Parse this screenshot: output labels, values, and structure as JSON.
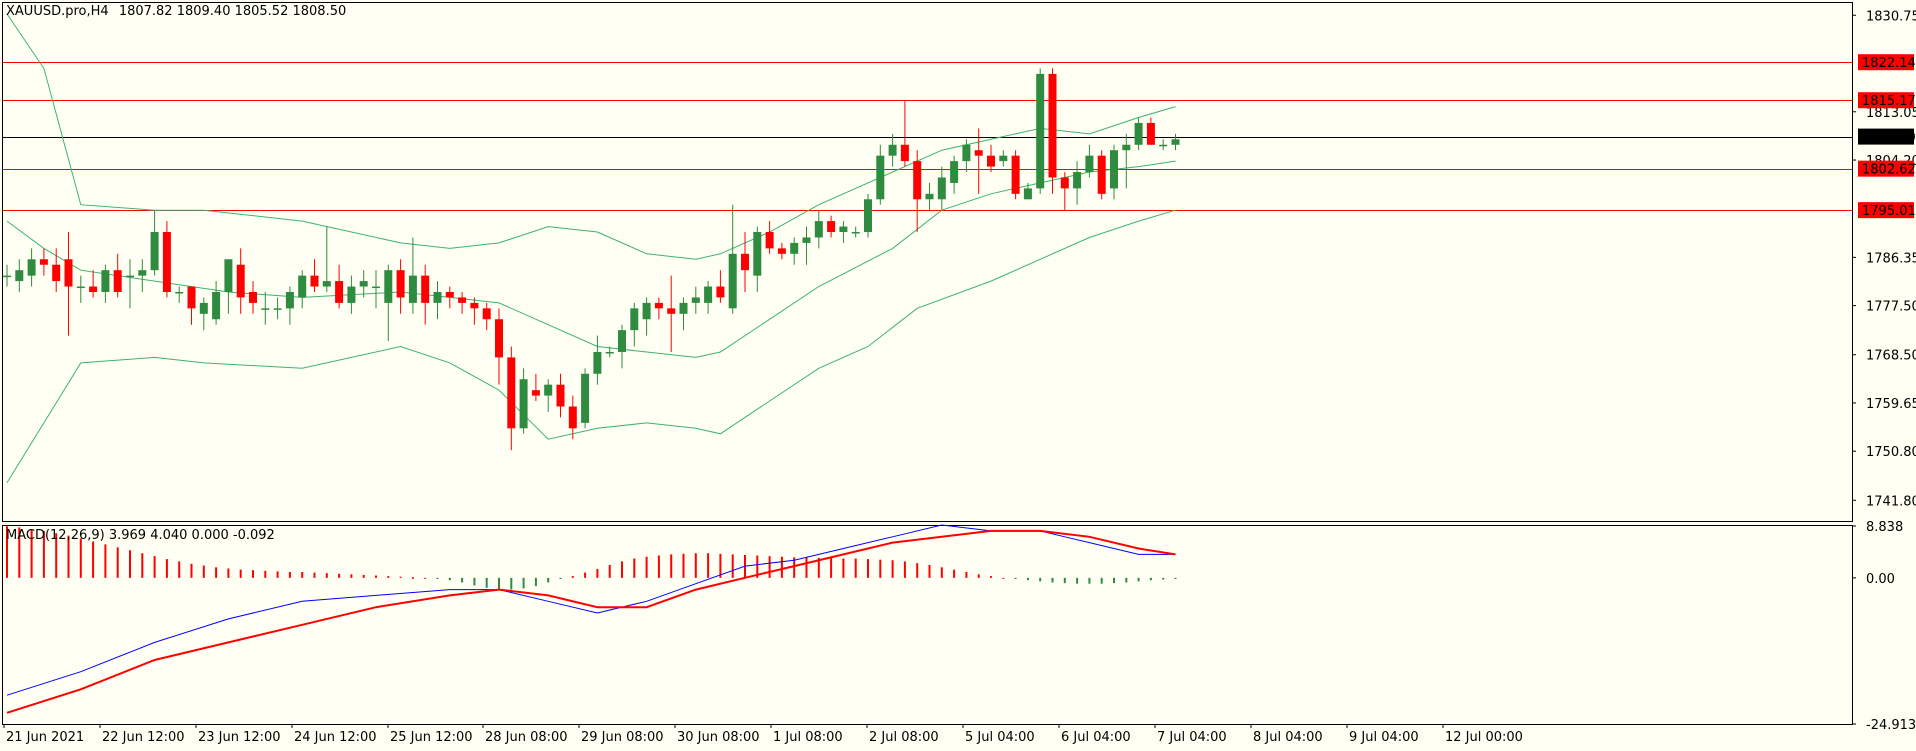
{
  "header": {
    "symbol": "XAUUSD.pro,H4",
    "ohlc": "1807.82 1809.40 1805.52 1808.50"
  },
  "macd_label": "MACD(12,26,9) 3.969 4.040 0.000 -0.092",
  "colors": {
    "background": "#fffff3",
    "bull_candle": "#2e8b40",
    "bear_candle": "#ff0000",
    "bands": "#3cb371",
    "level_line": "#ff0000",
    "current_price_line": "#000000",
    "macd_main": "#0000ff",
    "macd_signal": "#ff0000"
  },
  "chart_data": [
    {
      "type": "candlestick",
      "title": "XAUUSD.pro,H4",
      "ylim": [
        1738,
        1833
      ],
      "y_ticks": [
        "1830.75",
        "1813.05",
        "1804.20",
        "1786.35",
        "1777.50",
        "1768.50",
        "1759.65",
        "1750.80",
        "1741.80"
      ],
      "x_tick_labels": [
        "21 Jun 2021",
        "22 Jun 12:00",
        "23 Jun 12:00",
        "24 Jun 12:00",
        "25 Jun 12:00",
        "28 Jun 08:00",
        "29 Jun 08:00",
        "30 Jun 08:00",
        "1 Jul 08:00",
        "2 Jul 08:00",
        "5 Jul 04:00",
        "6 Jul 04:00",
        "7 Jul 04:00",
        "8 Jul 04:00",
        "9 Jul 04:00",
        "12 Jul 00:00"
      ],
      "horizontal_levels": [
        {
          "value": 1822.14,
          "label": "1822.14"
        },
        {
          "value": 1815.17,
          "label": "1815.17"
        },
        {
          "value": 1802.62,
          "label": "1802.62"
        },
        {
          "value": 1795.01,
          "label": "1795.01"
        }
      ],
      "current_price": {
        "value": 1808.5,
        "label": "1808.50"
      },
      "candles": [
        [
          1783,
          1785,
          1781,
          1783
        ],
        [
          1782,
          1786,
          1780,
          1784
        ],
        [
          1783,
          1788,
          1781,
          1786
        ],
        [
          1786,
          1788,
          1783,
          1785
        ],
        [
          1785,
          1788,
          1780,
          1782
        ],
        [
          1786,
          1791,
          1772,
          1781
        ],
        [
          1781,
          1783,
          1778,
          1781
        ],
        [
          1781,
          1784,
          1779,
          1780
        ],
        [
          1780,
          1785,
          1778,
          1784
        ],
        [
          1784,
          1787,
          1779,
          1780
        ],
        [
          1783,
          1786,
          1777,
          1783
        ],
        [
          1783,
          1786,
          1780,
          1784
        ],
        [
          1784,
          1795,
          1783,
          1791
        ],
        [
          1791,
          1793,
          1779,
          1780
        ],
        [
          1780,
          1781,
          1778,
          1780
        ],
        [
          1781,
          1781,
          1774,
          1777
        ],
        [
          1776,
          1779,
          1773,
          1778
        ],
        [
          1775,
          1782,
          1774,
          1780
        ],
        [
          1780,
          1786,
          1776,
          1786
        ],
        [
          1785,
          1788,
          1776,
          1779
        ],
        [
          1780,
          1782,
          1776,
          1778
        ],
        [
          1777,
          1780,
          1774,
          1777
        ],
        [
          1777,
          1779,
          1775,
          1777
        ],
        [
          1777,
          1781,
          1774,
          1780
        ],
        [
          1779,
          1784,
          1777,
          1783
        ],
        [
          1783,
          1786,
          1780,
          1781
        ],
        [
          1781,
          1792,
          1780,
          1782
        ],
        [
          1782,
          1785,
          1777,
          1778
        ],
        [
          1778,
          1783,
          1776,
          1781
        ],
        [
          1781,
          1784,
          1779,
          1782
        ],
        [
          1781,
          1784,
          1777,
          1781
        ],
        [
          1778,
          1785,
          1771,
          1784
        ],
        [
          1784,
          1786,
          1776,
          1779
        ],
        [
          1778,
          1790,
          1776,
          1783
        ],
        [
          1783,
          1785,
          1774,
          1778
        ],
        [
          1778,
          1782,
          1775,
          1780
        ],
        [
          1780,
          1781,
          1777,
          1779
        ],
        [
          1779,
          1780,
          1776,
          1778
        ],
        [
          1778,
          1779,
          1774,
          1777
        ],
        [
          1777,
          1778,
          1773,
          1775
        ],
        [
          1775,
          1777,
          1763,
          1768
        ],
        [
          1768,
          1770,
          1751,
          1755
        ],
        [
          1755,
          1766,
          1754,
          1764
        ],
        [
          1762,
          1765,
          1760,
          1761
        ],
        [
          1761,
          1764,
          1758,
          1763
        ],
        [
          1763,
          1765,
          1757,
          1759
        ],
        [
          1759,
          1761,
          1753,
          1755
        ],
        [
          1756,
          1766,
          1755,
          1765
        ],
        [
          1765,
          1772,
          1763,
          1769
        ],
        [
          1769,
          1770,
          1768,
          1769
        ],
        [
          1769,
          1774,
          1766,
          1773
        ],
        [
          1773,
          1778,
          1770,
          1777
        ],
        [
          1775,
          1779,
          1772,
          1778
        ],
        [
          1778,
          1779,
          1775,
          1777
        ],
        [
          1777,
          1783,
          1769,
          1776
        ],
        [
          1776,
          1779,
          1773,
          1778
        ],
        [
          1778,
          1781,
          1776,
          1779
        ],
        [
          1778,
          1782,
          1776,
          1781
        ],
        [
          1781,
          1784,
          1778,
          1779
        ],
        [
          1777,
          1796,
          1776,
          1787
        ],
        [
          1787,
          1791,
          1780,
          1784
        ],
        [
          1783,
          1792,
          1780,
          1791
        ],
        [
          1791,
          1793,
          1787,
          1788
        ],
        [
          1788,
          1789,
          1786,
          1787
        ],
        [
          1787,
          1790,
          1785,
          1789
        ],
        [
          1789,
          1792,
          1785,
          1790
        ],
        [
          1790,
          1795,
          1788,
          1793
        ],
        [
          1793,
          1794,
          1790,
          1791
        ],
        [
          1791,
          1793,
          1789,
          1792
        ],
        [
          1791,
          1792,
          1790,
          1791
        ],
        [
          1791,
          1798,
          1790,
          1797
        ],
        [
          1797,
          1807,
          1796,
          1805
        ],
        [
          1805,
          1809,
          1803,
          1807
        ],
        [
          1807,
          1815,
          1803,
          1804
        ],
        [
          1804,
          1806,
          1791,
          1797
        ],
        [
          1797,
          1800,
          1795,
          1798
        ],
        [
          1797,
          1803,
          1795,
          1801
        ],
        [
          1800,
          1805,
          1798,
          1804
        ],
        [
          1804,
          1808,
          1802,
          1807
        ],
        [
          1806,
          1810,
          1798,
          1805
        ],
        [
          1805,
          1807,
          1802,
          1803
        ],
        [
          1804,
          1806,
          1803,
          1805
        ],
        [
          1805,
          1806,
          1797,
          1798
        ],
        [
          1797,
          1800,
          1797,
          1799
        ],
        [
          1799,
          1821,
          1798,
          1820
        ],
        [
          1820,
          1821,
          1798,
          1801
        ],
        [
          1801,
          1802,
          1795,
          1799
        ],
        [
          1799,
          1804,
          1796,
          1802
        ],
        [
          1802,
          1807,
          1801,
          1805
        ],
        [
          1805,
          1806,
          1797,
          1798
        ],
        [
          1799,
          1807,
          1797,
          1806
        ],
        [
          1806,
          1809,
          1799,
          1807
        ],
        [
          1807,
          1812,
          1806,
          1811
        ],
        [
          1811,
          1812,
          1807,
          1807
        ],
        [
          1807,
          1808,
          1806,
          1807
        ],
        [
          1807,
          1809,
          1806,
          1808
        ]
      ],
      "bollinger": {
        "upper": [
          [
            0,
            1831
          ],
          [
            3,
            1821
          ],
          [
            6,
            1796
          ],
          [
            12,
            1795
          ],
          [
            16,
            1795
          ],
          [
            24,
            1793
          ],
          [
            32,
            1789
          ],
          [
            36,
            1788
          ],
          [
            40,
            1789
          ],
          [
            44,
            1792
          ],
          [
            48,
            1791
          ],
          [
            52,
            1787
          ],
          [
            56,
            1786
          ],
          [
            58,
            1787
          ],
          [
            62,
            1791
          ],
          [
            66,
            1796
          ],
          [
            72,
            1802
          ],
          [
            76,
            1806
          ],
          [
            80,
            1808
          ],
          [
            84,
            1810
          ],
          [
            88,
            1809
          ],
          [
            92,
            1812
          ],
          [
            95,
            1814
          ]
        ],
        "middle": [
          [
            0,
            1793
          ],
          [
            3,
            1788
          ],
          [
            6,
            1784
          ],
          [
            12,
            1782
          ],
          [
            18,
            1780
          ],
          [
            24,
            1779
          ],
          [
            32,
            1780
          ],
          [
            36,
            1779
          ],
          [
            40,
            1778
          ],
          [
            44,
            1774
          ],
          [
            48,
            1770
          ],
          [
            52,
            1769
          ],
          [
            56,
            1768
          ],
          [
            58,
            1769
          ],
          [
            62,
            1775
          ],
          [
            66,
            1781
          ],
          [
            72,
            1788
          ],
          [
            76,
            1795
          ],
          [
            80,
            1798
          ],
          [
            84,
            1800
          ],
          [
            88,
            1802
          ],
          [
            92,
            1803
          ],
          [
            95,
            1804
          ]
        ],
        "lower": [
          [
            0,
            1745
          ],
          [
            3,
            1756
          ],
          [
            6,
            1767
          ],
          [
            12,
            1768
          ],
          [
            16,
            1767
          ],
          [
            24,
            1766
          ],
          [
            32,
            1770
          ],
          [
            36,
            1767
          ],
          [
            40,
            1762
          ],
          [
            44,
            1753
          ],
          [
            48,
            1755
          ],
          [
            52,
            1756
          ],
          [
            56,
            1755
          ],
          [
            58,
            1754
          ],
          [
            62,
            1760
          ],
          [
            66,
            1766
          ],
          [
            70,
            1770
          ],
          [
            74,
            1777
          ],
          [
            80,
            1782
          ],
          [
            84,
            1786
          ],
          [
            88,
            1790
          ],
          [
            92,
            1793
          ],
          [
            95,
            1795
          ]
        ]
      }
    },
    {
      "type": "macd",
      "title": "MACD(12,26,9)",
      "ylim": [
        -24.913,
        8.838
      ],
      "y_ticks": [
        "8.838",
        "0.00",
        "-24.913"
      ],
      "histogram": [
        8.8,
        8.6,
        8.3,
        8.0,
        7.6,
        7.2,
        6.7,
        6.2,
        5.7,
        5.2,
        4.7,
        4.2,
        3.7,
        3.2,
        2.8,
        2.4,
        2.1,
        1.8,
        1.6,
        1.4,
        1.3,
        1.2,
        1.1,
        1.0,
        1.0,
        0.9,
        0.8,
        0.7,
        0.6,
        0.5,
        0.4,
        0.3,
        0.2,
        0.1,
        0.0,
        -0.2,
        -0.4,
        -0.8,
        -1.3,
        -1.7,
        -2.0,
        -2.0,
        -1.8,
        -1.4,
        -0.8,
        -0.2,
        0.3,
        0.9,
        1.5,
        2.2,
        2.8,
        3.3,
        3.6,
        3.8,
        4.0,
        4.1,
        4.2,
        4.2,
        4.1,
        4.0,
        3.9,
        3.8,
        3.7,
        3.6,
        3.5,
        3.5,
        3.4,
        3.4,
        3.3,
        3.3,
        3.2,
        3.1,
        3.0,
        2.8,
        2.5,
        2.2,
        1.8,
        1.4,
        1.0,
        0.6,
        0.3,
        0.0,
        -0.2,
        -0.4,
        -0.6,
        -0.8,
        -0.9,
        -1.0,
        -1.0,
        -1.0,
        -0.9,
        -0.8,
        -0.6,
        -0.4,
        -0.3,
        -0.2
      ],
      "main": [
        [
          0,
          -20
        ],
        [
          6,
          -16
        ],
        [
          12,
          -11
        ],
        [
          18,
          -7
        ],
        [
          24,
          -4
        ],
        [
          30,
          -3
        ],
        [
          36,
          -2
        ],
        [
          40,
          -2
        ],
        [
          44,
          -4
        ],
        [
          48,
          -6
        ],
        [
          52,
          -4
        ],
        [
          56,
          -1
        ],
        [
          60,
          2
        ],
        [
          64,
          3
        ],
        [
          68,
          5
        ],
        [
          72,
          7
        ],
        [
          76,
          9
        ],
        [
          80,
          8
        ],
        [
          84,
          8
        ],
        [
          86,
          7
        ],
        [
          88,
          6
        ],
        [
          90,
          5
        ],
        [
          92,
          4
        ],
        [
          95,
          4
        ]
      ],
      "signal": [
        [
          0,
          -23
        ],
        [
          6,
          -19
        ],
        [
          12,
          -14
        ],
        [
          18,
          -11
        ],
        [
          24,
          -8
        ],
        [
          30,
          -5
        ],
        [
          36,
          -3
        ],
        [
          40,
          -2
        ],
        [
          44,
          -3
        ],
        [
          48,
          -5
        ],
        [
          52,
          -5
        ],
        [
          56,
          -2
        ],
        [
          60,
          0
        ],
        [
          64,
          2
        ],
        [
          68,
          4
        ],
        [
          72,
          6
        ],
        [
          76,
          7
        ],
        [
          80,
          8
        ],
        [
          84,
          8
        ],
        [
          88,
          7
        ],
        [
          92,
          5
        ],
        [
          95,
          4
        ]
      ]
    }
  ]
}
